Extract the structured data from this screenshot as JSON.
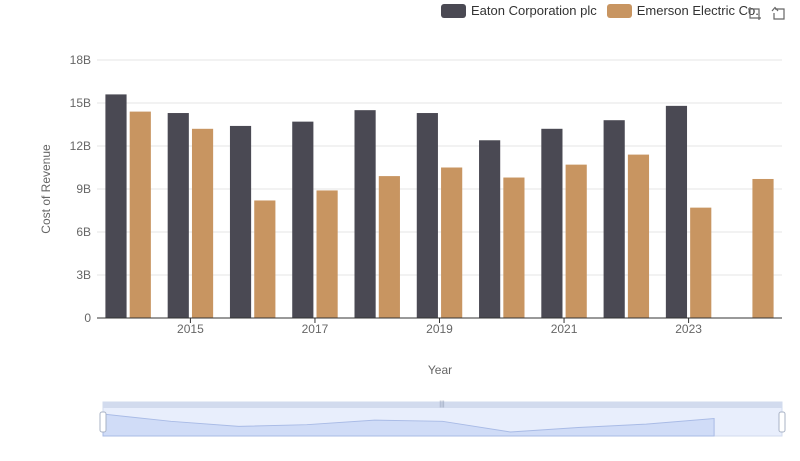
{
  "chart_data": {
    "type": "bar",
    "x": [
      2014,
      2015,
      2016,
      2017,
      2018,
      2019,
      2020,
      2021,
      2022,
      2023,
      2024
    ],
    "x_tick_labels": [
      "2015",
      "2017",
      "2019",
      "2021",
      "2023"
    ],
    "xlabel": "Year",
    "ylabel": "Cost of Revenue",
    "ylim": [
      0,
      18000000000
    ],
    "y_tick_labels": [
      "0",
      "3B",
      "6B",
      "9B",
      "12B",
      "15B",
      "18B"
    ],
    "series": [
      {
        "name": "Eaton Corporation plc",
        "color": "#4a4953",
        "values": [
          15600000000,
          14300000000,
          13400000000,
          13700000000,
          14500000000,
          14300000000,
          12400000000,
          13200000000,
          13800000000,
          14800000000,
          null
        ]
      },
      {
        "name": "Emerson Electric Co.",
        "color": "#c89561",
        "values": [
          14400000000,
          13200000000,
          8200000000,
          8900000000,
          9900000000,
          10500000000,
          9800000000,
          10700000000,
          11400000000,
          7700000000,
          9700000000
        ]
      }
    ],
    "grid": true,
    "legend_position": "top-right"
  },
  "toolbox": {
    "zoom_icon": "zoom-select-icon",
    "restore_icon": "zoom-reset-icon"
  }
}
